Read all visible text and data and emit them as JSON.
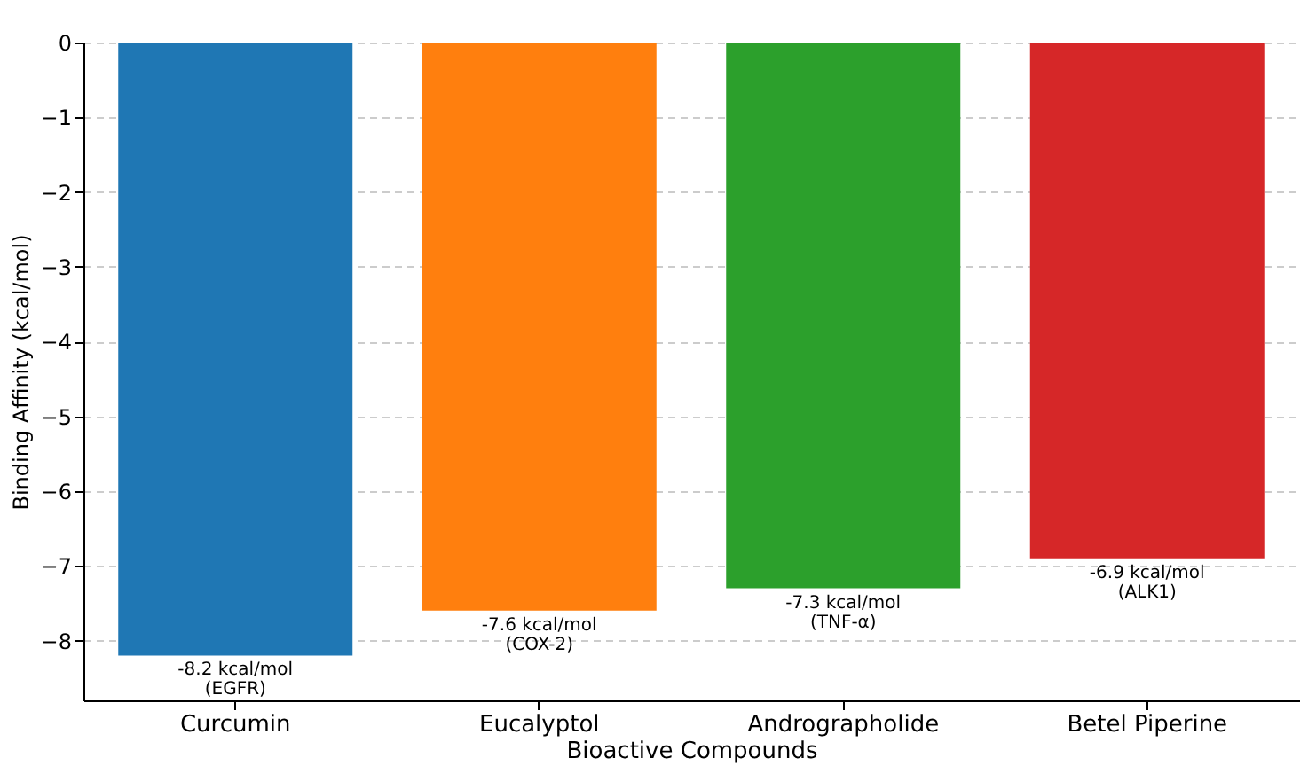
{
  "chart_data": {
    "type": "bar",
    "xlabel": "Bioactive Compounds",
    "ylabel": "Binding Affinity (kcal/mol)",
    "categories": [
      "Curcumin",
      "Eucalyptol",
      "Andrographolide",
      "Betel Piperine"
    ],
    "values": [
      -8.2,
      -7.6,
      -7.3,
      -6.9
    ],
    "colors": [
      "#1f77b4",
      "#ff7f0e",
      "#2ca02c",
      "#d62728"
    ],
    "value_labels": [
      "-8.2 kcal/mol\n(EGFR)",
      "-7.6 kcal/mol\n(COX-2)",
      "-7.3 kcal/mol\n(TNF-α)",
      "-6.9 kcal/mol\n(ALK1)"
    ],
    "ylim": [
      -8.8,
      0
    ],
    "yticks": [
      0,
      -1,
      -2,
      -3,
      -4,
      -5,
      -6,
      -7,
      -8
    ],
    "grid": "y"
  }
}
